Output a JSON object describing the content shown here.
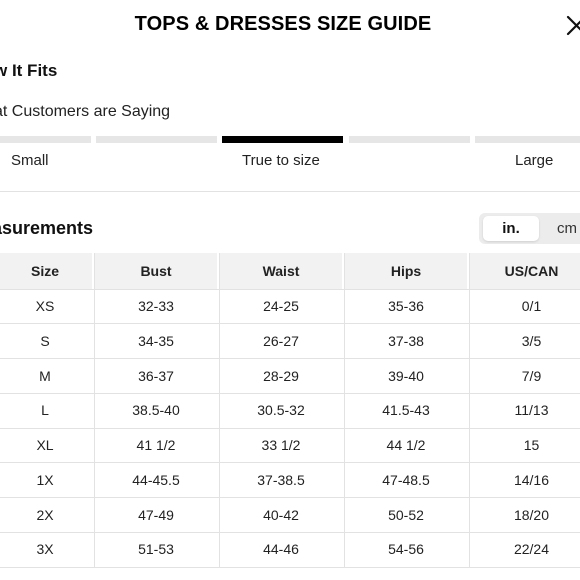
{
  "header": {
    "title": "TOPS & DRESSES SIZE GUIDE",
    "close_icon": "close-icon"
  },
  "fit": {
    "section_title": "w It Fits",
    "subtitle": "at Customers are Saying",
    "labels": [
      "Small",
      "True to size",
      "Large"
    ],
    "selected": "True to size",
    "active_color": "#000000",
    "inactive_color": "#e6e6e6"
  },
  "measurements": {
    "title": "asurements",
    "units": [
      "in.",
      "cm"
    ],
    "selected_unit": "in.",
    "table": {
      "headers": [
        "Size",
        "Bust",
        "Waist",
        "Hips",
        "US/CAN"
      ],
      "rows": [
        [
          "XS",
          "32-33",
          "24-25",
          "35-36",
          "0/1"
        ],
        [
          "S",
          "34-35",
          "26-27",
          "37-38",
          "3/5"
        ],
        [
          "M",
          "36-37",
          "28-29",
          "39-40",
          "7/9"
        ],
        [
          "L",
          "38.5-40",
          "30.5-32",
          "41.5-43",
          "11/13"
        ],
        [
          "XL",
          "41 1/2",
          "33 1/2",
          "44 1/2",
          "15"
        ],
        [
          "1X",
          "44-45.5",
          "37-38.5",
          "47-48.5",
          "14/16"
        ],
        [
          "2X",
          "47-49",
          "40-42",
          "50-52",
          "18/20"
        ],
        [
          "3X",
          "51-53",
          "44-46",
          "54-56",
          "22/24"
        ]
      ]
    }
  }
}
